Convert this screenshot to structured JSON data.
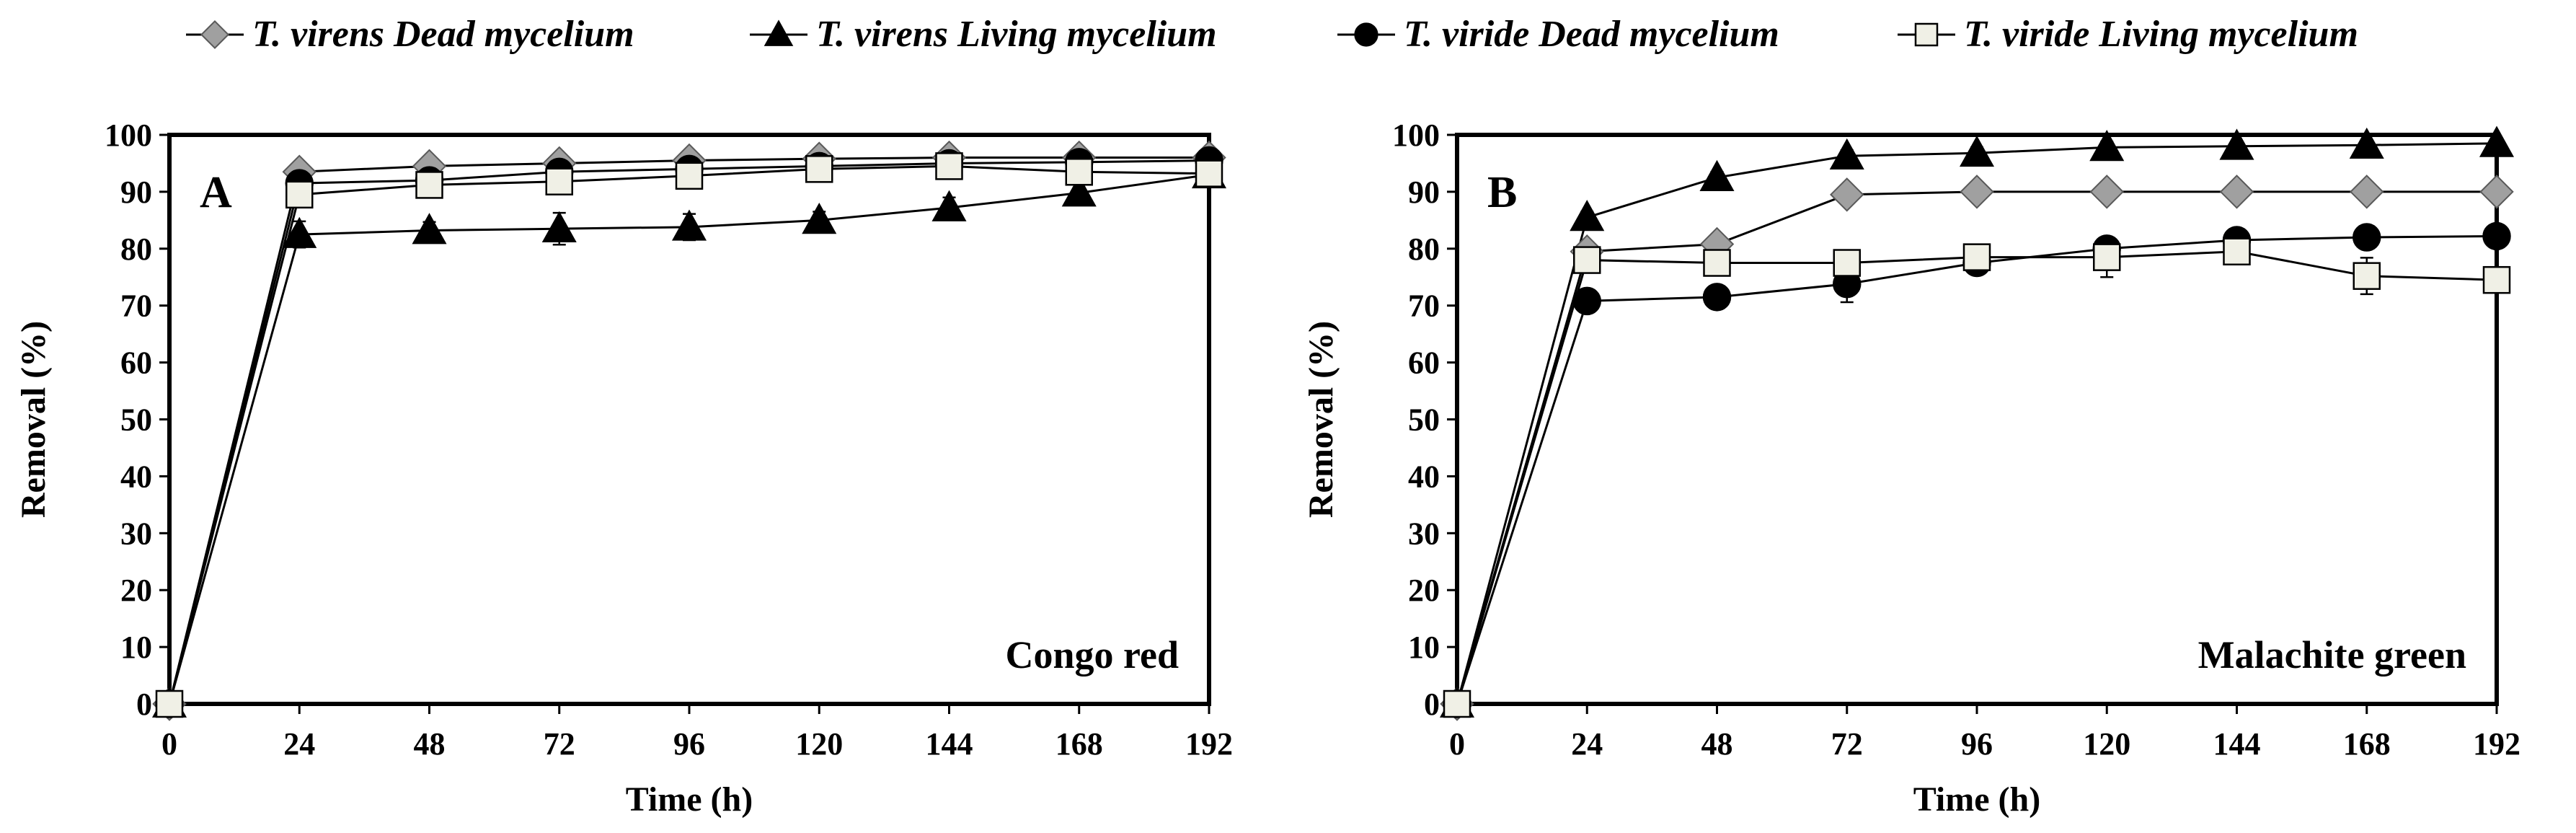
{
  "legend": [
    {
      "name": "T. virens Dead mycelium",
      "marker": "diamond",
      "fill": "#a0a0a0",
      "stroke": "#595959"
    },
    {
      "name": "T. virens Living mycelium",
      "marker": "triangle",
      "fill": "#000000",
      "stroke": "#000000"
    },
    {
      "name": "T. viride Dead mycelium",
      "marker": "circle",
      "fill": "#000000",
      "stroke": "#000000"
    },
    {
      "name": "T. viride Living mycelium",
      "marker": "square",
      "fill": "#f0f0e6",
      "stroke": "#000000"
    }
  ],
  "chart_data": [
    {
      "type": "line",
      "panel_label": "A",
      "dye": "Congo red",
      "xlabel": "Time (h)",
      "ylabel": "Removal (%)",
      "x": [
        0,
        24,
        48,
        72,
        96,
        120,
        144,
        168,
        192
      ],
      "xticks": [
        0,
        24,
        48,
        72,
        96,
        120,
        144,
        168,
        192
      ],
      "yticks": [
        0,
        10,
        20,
        30,
        40,
        50,
        60,
        70,
        80,
        90,
        100
      ],
      "xlim": [
        0,
        192
      ],
      "ylim": [
        0,
        100
      ],
      "series": [
        {
          "name": "T. virens Dead mycelium",
          "values": [
            0,
            93.5,
            94.5,
            95,
            95.5,
            95.8,
            96,
            96,
            96
          ],
          "errors": [
            0,
            0.8,
            0.6,
            0.7,
            0.6,
            0.6,
            0.5,
            0.5,
            0.5
          ]
        },
        {
          "name": "T. virens Living mycelium",
          "values": [
            0,
            82.5,
            83.2,
            83.5,
            83.8,
            85,
            87.2,
            89.8,
            93
          ],
          "errors": [
            0,
            2.3,
            1.5,
            2.8,
            2.3,
            1.5,
            1.8,
            1.5,
            1.0
          ]
        },
        {
          "name": "T. viride Dead mycelium",
          "values": [
            0,
            91.5,
            92,
            93.5,
            94,
            94.5,
            95,
            95.2,
            95.5
          ],
          "errors": [
            0,
            1,
            1,
            1,
            1,
            1,
            1,
            1,
            1
          ]
        },
        {
          "name": "T. viride Living mycelium",
          "values": [
            0,
            89.5,
            91.2,
            91.8,
            92.8,
            94,
            94.5,
            93.5,
            93.2
          ],
          "errors": [
            0,
            1.5,
            1.5,
            1.8,
            1.5,
            1.5,
            1.5,
            1.5,
            1.2
          ]
        }
      ]
    },
    {
      "type": "line",
      "panel_label": "B",
      "dye": "Malachite green",
      "xlabel": "Time (h)",
      "ylabel": "Removal (%)",
      "x": [
        0,
        24,
        48,
        72,
        96,
        120,
        144,
        168,
        192
      ],
      "xticks": [
        0,
        24,
        48,
        72,
        96,
        120,
        144,
        168,
        192
      ],
      "yticks": [
        0,
        10,
        20,
        30,
        40,
        50,
        60,
        70,
        80,
        90,
        100
      ],
      "xlim": [
        0,
        192
      ],
      "ylim": [
        0,
        100
      ],
      "series": [
        {
          "name": "T. virens Dead mycelium",
          "values": [
            0,
            79.5,
            80.8,
            89.5,
            90,
            90,
            90,
            90,
            90
          ],
          "errors": [
            0,
            1,
            1,
            1,
            0.8,
            0.8,
            0.8,
            0.8,
            0.8
          ]
        },
        {
          "name": "T. virens Living mycelium",
          "values": [
            0,
            85.5,
            92.5,
            96.3,
            96.8,
            97.8,
            98,
            98.2,
            98.5
          ],
          "errors": [
            0,
            1,
            1,
            1,
            1,
            1,
            0.8,
            0.8,
            0.8
          ]
        },
        {
          "name": "T. viride Dead mycelium",
          "values": [
            0,
            70.8,
            71.5,
            73.8,
            77.5,
            80,
            81.5,
            82,
            82.2
          ],
          "errors": [
            0,
            1.2,
            1.2,
            3.2,
            1.5,
            1.5,
            1.5,
            1.2,
            1.2
          ]
        },
        {
          "name": "T. viride Living mycelium",
          "values": [
            0,
            78,
            77.5,
            77.5,
            78.5,
            78.5,
            79.5,
            75.2,
            74.5
          ],
          "errors": [
            0,
            1.5,
            1.5,
            1.5,
            1.5,
            3.5,
            1.5,
            3.2,
            1.5
          ]
        }
      ]
    }
  ]
}
